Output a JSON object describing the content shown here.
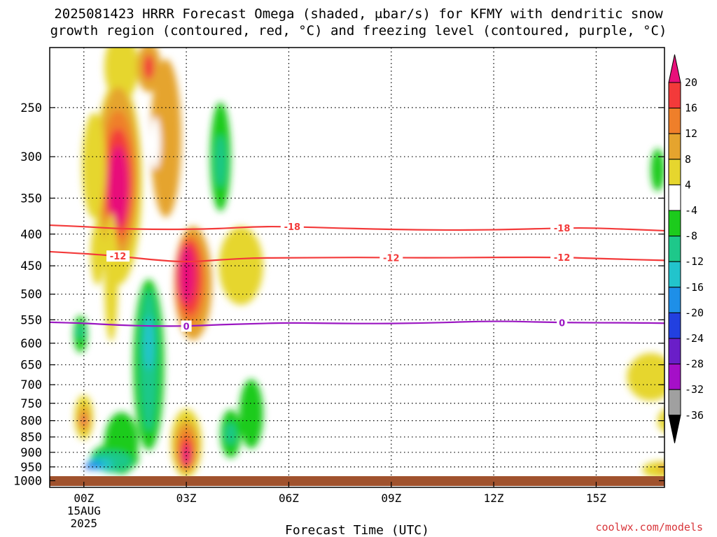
{
  "title_lines": [
    "2025081423 HRRR Forecast Omega (shaded, μbar/s) for KFMY with dendritic snow",
    "growth region (contoured, red, °C) and freezing level (contoured, purple, °C)"
  ],
  "credit": "coolwx.com/models",
  "chart_data": {
    "type": "heatmap",
    "xlabel": "Forecast Time (UTC)",
    "ylabel": "",
    "x_ticks": [
      {
        "value": 0,
        "label": "00Z",
        "sub": [
          "15AUG",
          "2025"
        ]
      },
      {
        "value": 3,
        "label": "03Z"
      },
      {
        "value": 6,
        "label": "06Z"
      },
      {
        "value": 9,
        "label": "09Z"
      },
      {
        "value": 12,
        "label": "12Z"
      },
      {
        "value": 15,
        "label": "15Z"
      }
    ],
    "xlim": [
      -1,
      17
    ],
    "y_ticks": [
      250,
      300,
      350,
      400,
      450,
      500,
      550,
      600,
      650,
      700,
      750,
      800,
      850,
      900,
      950,
      1000
    ],
    "ylim": [
      1025,
      200
    ],
    "yscale": "log",
    "grid": true,
    "colorbar": {
      "ticks": [
        20,
        16,
        12,
        8,
        4,
        -4,
        -8,
        -12,
        -16,
        -20,
        -24,
        -28,
        -32,
        -36
      ],
      "bins": [
        {
          "range": [
            20,
            999
          ],
          "color": "#e8107a"
        },
        {
          "range": [
            16,
            20
          ],
          "color": "#f33a3a"
        },
        {
          "range": [
            12,
            16
          ],
          "color": "#ef7f2a"
        },
        {
          "range": [
            8,
            12
          ],
          "color": "#e5a42e"
        },
        {
          "range": [
            4,
            8
          ],
          "color": "#e6d62e"
        },
        {
          "range": [
            -4,
            4
          ],
          "color": "#ffffff"
        },
        {
          "range": [
            -8,
            -4
          ],
          "color": "#1ccb1c"
        },
        {
          "range": [
            -12,
            -8
          ],
          "color": "#1ec88a"
        },
        {
          "range": [
            -16,
            -12
          ],
          "color": "#22c4cc"
        },
        {
          "range": [
            -20,
            -16
          ],
          "color": "#1e8fe8"
        },
        {
          "range": [
            -24,
            -20
          ],
          "color": "#2240e0"
        },
        {
          "range": [
            -28,
            -24
          ],
          "color": "#6a1ec8"
        },
        {
          "range": [
            -32,
            -28
          ],
          "color": "#a50fc8"
        },
        {
          "range": [
            -36,
            -32
          ],
          "color": "#a0a0a0"
        },
        {
          "range": [
            -999,
            -36
          ],
          "color": "#000000"
        }
      ]
    },
    "omega_cells": [
      {
        "x": 1.1,
        "p": 215,
        "w": 1.0,
        "h": 55,
        "value": 6
      },
      {
        "x": 1.9,
        "p": 215,
        "w": 0.7,
        "h": 40,
        "value": 10
      },
      {
        "x": 1.9,
        "p": 215,
        "w": 0.3,
        "h": 20,
        "value": 18
      },
      {
        "x": 1.0,
        "p": 330,
        "w": 1.4,
        "h": 240,
        "value": 6
      },
      {
        "x": 1.0,
        "p": 320,
        "w": 1.2,
        "h": 200,
        "value": 10
      },
      {
        "x": 1.0,
        "p": 325,
        "w": 1.0,
        "h": 160,
        "value": 14
      },
      {
        "x": 1.0,
        "p": 330,
        "w": 0.8,
        "h": 130,
        "value": 18
      },
      {
        "x": 1.0,
        "p": 335,
        "w": 0.6,
        "h": 100,
        "value": 22
      },
      {
        "x": 2.4,
        "p": 280,
        "w": 0.9,
        "h": 160,
        "value": 8
      },
      {
        "x": 2.1,
        "p": 285,
        "w": 0.3,
        "h": 55,
        "value": 0
      },
      {
        "x": 0.3,
        "p": 310,
        "w": 0.7,
        "h": 120,
        "value": 6
      },
      {
        "x": 0.4,
        "p": 430,
        "w": 0.4,
        "h": 100,
        "value": 6
      },
      {
        "x": 0.8,
        "p": 470,
        "w": 0.4,
        "h": 220,
        "value": 6
      },
      {
        "x": 4.6,
        "p": 450,
        "w": 1.3,
        "h": 130,
        "value": 6
      },
      {
        "x": 3.2,
        "p": 480,
        "w": 1.1,
        "h": 200,
        "value": 8
      },
      {
        "x": 3.1,
        "p": 475,
        "w": 0.9,
        "h": 160,
        "value": 12
      },
      {
        "x": 3.1,
        "p": 470,
        "w": 0.7,
        "h": 130,
        "value": 16
      },
      {
        "x": 3.0,
        "p": 465,
        "w": 0.5,
        "h": 100,
        "value": 22
      },
      {
        "x": 4.0,
        "p": 300,
        "w": 0.6,
        "h": 120,
        "value": -6
      },
      {
        "x": 4.0,
        "p": 305,
        "w": 0.3,
        "h": 60,
        "value": -9
      },
      {
        "x": 1.9,
        "p": 650,
        "w": 0.9,
        "h": 400,
        "value": -6
      },
      {
        "x": 1.9,
        "p": 640,
        "w": 0.5,
        "h": 330,
        "value": -9
      },
      {
        "x": 1.9,
        "p": 600,
        "w": 0.3,
        "h": 120,
        "value": -13
      },
      {
        "x": 1.1,
        "p": 870,
        "w": 1.0,
        "h": 200,
        "value": -6
      },
      {
        "x": 0.9,
        "p": 920,
        "w": 1.4,
        "h": 100,
        "value": -6
      },
      {
        "x": 0.8,
        "p": 930,
        "w": 1.2,
        "h": 70,
        "value": -9
      },
      {
        "x": 0.5,
        "p": 940,
        "w": 0.7,
        "h": 40,
        "value": -13
      },
      {
        "x": 0.3,
        "p": 945,
        "w": 0.5,
        "h": 30,
        "value": -17
      },
      {
        "x": 0.1,
        "p": 950,
        "w": 0.15,
        "h": 14,
        "value": -22
      },
      {
        "x": -0.1,
        "p": 580,
        "w": 0.4,
        "h": 80,
        "value": -6
      },
      {
        "x": -0.1,
        "p": 575,
        "w": 0.2,
        "h": 30,
        "value": -9
      },
      {
        "x": 0.0,
        "p": 790,
        "w": 0.55,
        "h": 130,
        "value": 6
      },
      {
        "x": 0.0,
        "p": 795,
        "w": 0.35,
        "h": 80,
        "value": 10
      },
      {
        "x": 0.0,
        "p": 798,
        "w": 0.2,
        "h": 40,
        "value": 14
      },
      {
        "x": 0.0,
        "p": 800,
        "w": 0.1,
        "h": 20,
        "value": 22
      },
      {
        "x": 3.0,
        "p": 870,
        "w": 0.9,
        "h": 220,
        "value": 6
      },
      {
        "x": 3.0,
        "p": 880,
        "w": 0.7,
        "h": 170,
        "value": 10
      },
      {
        "x": 3.0,
        "p": 890,
        "w": 0.5,
        "h": 140,
        "value": 14
      },
      {
        "x": 3.0,
        "p": 900,
        "w": 0.35,
        "h": 100,
        "value": 18
      },
      {
        "x": 3.0,
        "p": 910,
        "w": 0.25,
        "h": 70,
        "value": 22
      },
      {
        "x": 4.9,
        "p": 780,
        "w": 0.7,
        "h": 200,
        "value": -6
      },
      {
        "x": 4.3,
        "p": 840,
        "w": 0.6,
        "h": 150,
        "value": -6
      },
      {
        "x": 4.3,
        "p": 840,
        "w": 0.3,
        "h": 70,
        "value": -9
      },
      {
        "x": 16.8,
        "p": 315,
        "w": 0.4,
        "h": 50,
        "value": -6
      },
      {
        "x": 16.6,
        "p": 680,
        "w": 1.4,
        "h": 120,
        "value": 6
      },
      {
        "x": 17.2,
        "p": 800,
        "w": 0.8,
        "h": 80,
        "value": 6
      },
      {
        "x": 16.9,
        "p": 960,
        "w": 1.1,
        "h": 60,
        "value": 6
      },
      {
        "x": 17.0,
        "p": 955,
        "w": 0.4,
        "h": 30,
        "value": 10
      }
    ],
    "contours": [
      {
        "name": "-18",
        "color": "#f33a3a",
        "points": [
          [
            -1,
            387
          ],
          [
            0,
            389
          ],
          [
            1,
            392
          ],
          [
            2,
            393
          ],
          [
            3,
            393
          ],
          [
            4,
            392
          ],
          [
            5,
            389
          ],
          [
            6,
            389
          ],
          [
            8,
            392
          ],
          [
            10,
            394
          ],
          [
            12,
            394
          ],
          [
            14,
            391
          ],
          [
            15,
            391
          ],
          [
            17,
            395
          ]
        ],
        "labels": [
          {
            "x": 6.1,
            "text": "-18"
          },
          {
            "x": 14.0,
            "text": "-18"
          }
        ]
      },
      {
        "name": "-12",
        "color": "#f33a3a",
        "points": [
          [
            -1,
            427
          ],
          [
            0,
            430
          ],
          [
            1,
            434
          ],
          [
            2,
            440
          ],
          [
            3,
            444
          ],
          [
            4,
            440
          ],
          [
            5,
            437
          ],
          [
            6,
            437
          ],
          [
            8,
            436
          ],
          [
            10,
            437
          ],
          [
            12,
            436
          ],
          [
            14,
            436
          ],
          [
            15,
            438
          ],
          [
            17,
            441
          ]
        ],
        "labels": [
          {
            "x": 1.0,
            "text": "-12"
          },
          {
            "x": 9.0,
            "text": "-12"
          },
          {
            "x": 14.0,
            "text": "-12"
          }
        ]
      },
      {
        "name": "0",
        "color": "#9b17c2",
        "points": [
          [
            -1,
            555
          ],
          [
            0,
            557
          ],
          [
            1,
            561
          ],
          [
            2,
            563
          ],
          [
            3,
            563
          ],
          [
            4,
            560
          ],
          [
            5,
            558
          ],
          [
            6,
            556
          ],
          [
            8,
            558
          ],
          [
            10,
            557
          ],
          [
            12,
            552
          ],
          [
            14,
            556
          ],
          [
            16,
            556
          ],
          [
            17,
            557
          ]
        ],
        "labels": [
          {
            "x": 3.0,
            "text": "0"
          },
          {
            "x": 14.0,
            "text": "0"
          }
        ]
      }
    ]
  }
}
